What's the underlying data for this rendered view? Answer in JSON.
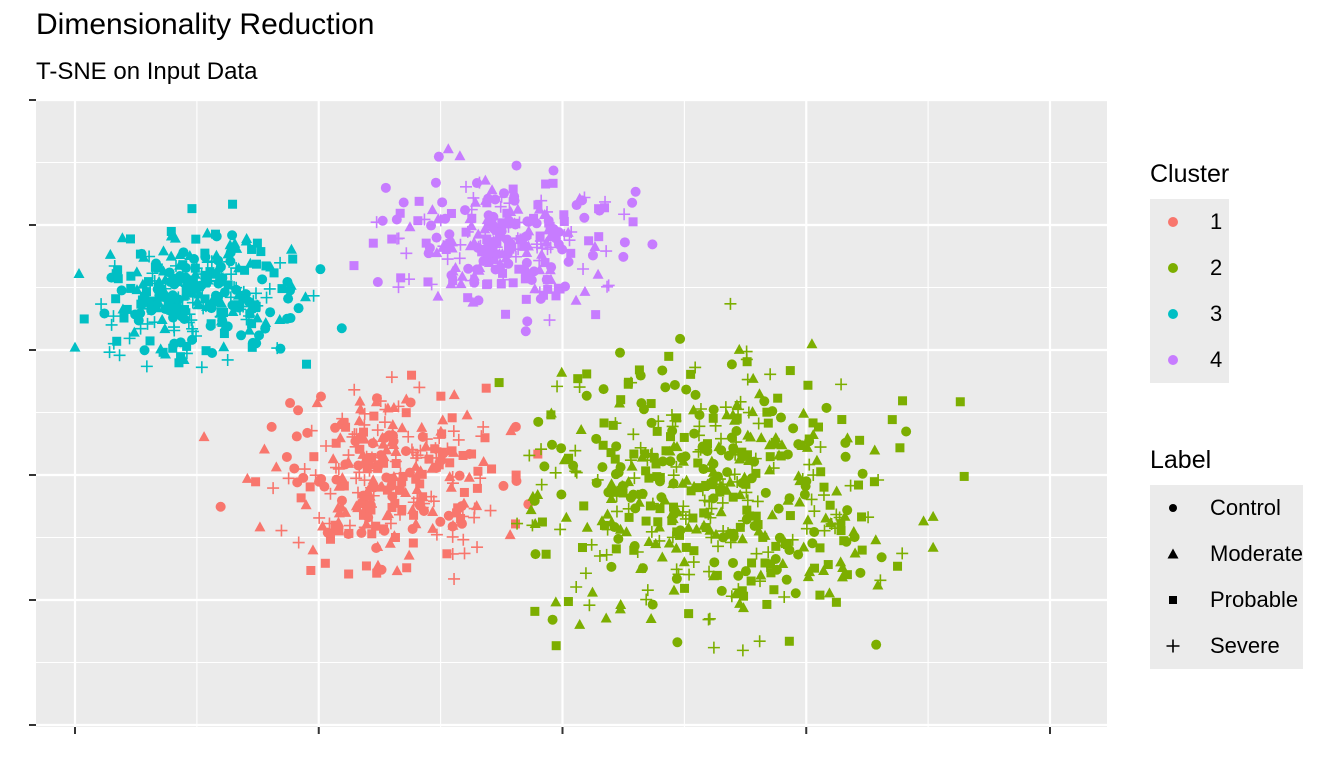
{
  "chart_data": {
    "type": "scatter",
    "title": "Dimensionality Reduction",
    "subtitle": "T-SNE on Input Data",
    "xlabel": "",
    "ylabel": "",
    "xlim": [
      -1.0,
      1.0
    ],
    "ylim": [
      -1.0,
      1.0
    ],
    "grid": true,
    "tick_labels_shown": false,
    "legend_placement": "right",
    "legends": [
      {
        "title": "Cluster",
        "entries": [
          "1",
          "2",
          "3",
          "4"
        ]
      },
      {
        "title": "Label",
        "entries": [
          "Control",
          "Moderate",
          "Probable",
          "Severe"
        ]
      }
    ],
    "series": [
      {
        "name": "1",
        "color": "#F8766D",
        "center": [
          -0.35,
          -0.22
        ],
        "spread": [
          0.22,
          0.25
        ],
        "n": 320
      },
      {
        "name": "2",
        "color": "#7CAE00",
        "center": [
          0.32,
          -0.25
        ],
        "spread": [
          0.33,
          0.37
        ],
        "n": 520
      },
      {
        "name": "3",
        "color": "#00BFC4",
        "center": [
          -0.74,
          0.37
        ],
        "spread": [
          0.19,
          0.18
        ],
        "n": 300
      },
      {
        "name": "4",
        "color": "#C77CFF",
        "center": [
          -0.12,
          0.55
        ],
        "spread": [
          0.2,
          0.2
        ],
        "n": 280
      }
    ],
    "label_shapes": {
      "Control": "circle",
      "Moderate": "triangle",
      "Probable": "square",
      "Severe": "plus"
    }
  }
}
